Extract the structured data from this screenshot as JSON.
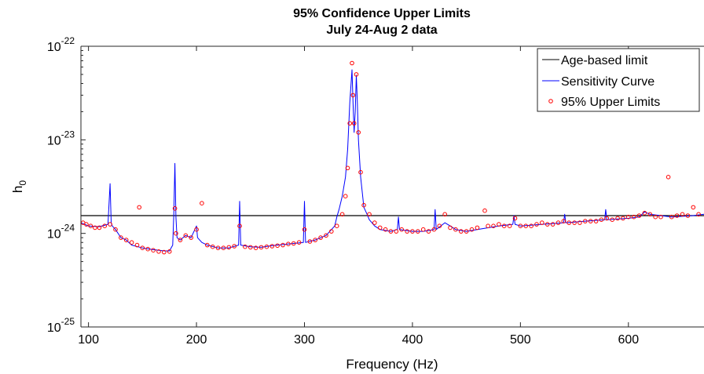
{
  "chart_data": {
    "type": "line",
    "title": "95% Confidence Upper Limits",
    "subtitle": "July 24-Aug 2 data",
    "xlabel": "Frequency (Hz)",
    "ylabel": "h",
    "ylabel_sub": "0",
    "xlim": [
      93,
      670
    ],
    "ylim": [
      1e-25,
      1e-22
    ],
    "y_scale": "log",
    "grid": false,
    "legend_position": "top-right",
    "x_ticks": [
      100,
      200,
      300,
      400,
      500,
      600
    ],
    "y_ticks": [
      {
        "value": 1e-25,
        "base": "10",
        "exp": "-25"
      },
      {
        "value": 1e-24,
        "base": "10",
        "exp": "-24"
      },
      {
        "value": 1e-23,
        "base": "10",
        "exp": "-23"
      },
      {
        "value": 1e-22,
        "base": "10",
        "exp": "-22"
      }
    ],
    "series": [
      {
        "name": "Age-based limit",
        "style": "line",
        "color": "#000000",
        "x": [
          93,
          670
        ],
        "y": [
          1.55e-24,
          1.55e-24
        ]
      },
      {
        "name": "Sensitivity Curve",
        "style": "line",
        "color": "#0000ff",
        "x": [
          93,
          100,
          110,
          118,
          120,
          121,
          122,
          125,
          130,
          135,
          140,
          150,
          160,
          170,
          175,
          178,
          179,
          180,
          181,
          182,
          185,
          190,
          195,
          200,
          201,
          205,
          210,
          220,
          230,
          239,
          240,
          241,
          250,
          260,
          270,
          280,
          290,
          299,
          300,
          301,
          310,
          320,
          328,
          330,
          332,
          335,
          338,
          340,
          342,
          344,
          345,
          346,
          347,
          348,
          349,
          350,
          352,
          355,
          358,
          360,
          365,
          370,
          380,
          386,
          387,
          388,
          400,
          410,
          420,
          421,
          422,
          430,
          435,
          440,
          450,
          460,
          480,
          493,
          494,
          495,
          500,
          520,
          540,
          541,
          542,
          560,
          578,
          579,
          580,
          600,
          610,
          615,
          620,
          640,
          660,
          670
        ],
        "y": [
          1.3e-24,
          1.2e-24,
          1.18e-24,
          1.25e-24,
          3.4e-24,
          1.3e-24,
          1.2e-24,
          1.1e-24,
          9e-25,
          8.5e-25,
          7.5e-25,
          7e-25,
          6.7e-25,
          6.5e-25,
          6.5e-25,
          7.5e-25,
          1.6e-24,
          5.6e-24,
          1.5e-24,
          9e-25,
          8.5e-25,
          9.5e-25,
          9e-25,
          1.2e-24,
          9e-25,
          8e-25,
          7.5e-25,
          7e-25,
          7e-25,
          7.5e-25,
          2.2e-24,
          7.5e-25,
          7.2e-25,
          7.1e-25,
          7.4e-25,
          7.6e-25,
          7.8e-25,
          8e-25,
          2.2e-24,
          8e-25,
          8.5e-25,
          9.5e-25,
          1.2e-24,
          1.5e-24,
          1.8e-24,
          2.5e-24,
          4e-24,
          8e-24,
          2.5e-23,
          5.6e-23,
          2.5e-23,
          1.2e-23,
          2e-23,
          4.9e-23,
          2.5e-23,
          1e-23,
          4e-24,
          1.9e-24,
          1.6e-24,
          1.4e-24,
          1.2e-24,
          1.1e-24,
          1.05e-24,
          1.1e-24,
          1.5e-24,
          1.1e-24,
          1.05e-24,
          1.05e-24,
          1.1e-24,
          1.8e-24,
          1.1e-24,
          1.3e-24,
          1.2e-24,
          1.1e-24,
          1.05e-24,
          1.1e-24,
          1.2e-24,
          1.25e-24,
          1.55e-24,
          1.25e-24,
          1.2e-24,
          1.25e-24,
          1.3e-24,
          1.6e-24,
          1.3e-24,
          1.35e-24,
          1.4e-24,
          1.8e-24,
          1.4e-24,
          1.45e-24,
          1.5e-24,
          1.7e-24,
          1.6e-24,
          1.5e-24,
          1.55e-24,
          1.6e-24
        ]
      },
      {
        "name": "95% Upper Limits",
        "style": "markers",
        "color": "#ff0000",
        "x": [
          95,
          98,
          102,
          106,
          110,
          115,
          120,
          125,
          130,
          135,
          140,
          145,
          147,
          150,
          155,
          160,
          165,
          170,
          175,
          180,
          181,
          185,
          190,
          195,
          200,
          205,
          210,
          215,
          220,
          225,
          230,
          235,
          240,
          245,
          250,
          255,
          260,
          265,
          270,
          275,
          280,
          285,
          290,
          295,
          300,
          305,
          310,
          315,
          320,
          325,
          330,
          335,
          338,
          340,
          342,
          344,
          345,
          346,
          348,
          350,
          352,
          355,
          360,
          365,
          370,
          375,
          380,
          385,
          390,
          395,
          400,
          405,
          410,
          415,
          420,
          425,
          430,
          435,
          440,
          445,
          450,
          455,
          460,
          467,
          470,
          475,
          480,
          485,
          490,
          495,
          500,
          505,
          510,
          515,
          520,
          525,
          530,
          535,
          540,
          545,
          550,
          555,
          560,
          565,
          570,
          575,
          580,
          585,
          590,
          595,
          600,
          605,
          610,
          615,
          620,
          625,
          630,
          637,
          640,
          645,
          650,
          655,
          660,
          665
        ],
        "y": [
          1.3e-24,
          1.25e-24,
          1.2e-24,
          1.15e-24,
          1.15e-24,
          1.2e-24,
          1.25e-24,
          1.1e-24,
          9e-25,
          8.5e-25,
          8e-25,
          7.5e-25,
          1.9e-24,
          7e-25,
          6.8e-25,
          6.6e-25,
          6.4e-25,
          6.3e-25,
          6.4e-25,
          1.85e-24,
          1e-24,
          8.5e-25,
          9.5e-25,
          9e-25,
          1.1e-24,
          2.1e-24,
          7.5e-25,
          7.2e-25,
          7e-25,
          7e-25,
          7.1e-25,
          7.3e-25,
          1.2e-24,
          7.2e-25,
          7.1e-25,
          7e-25,
          7.1e-25,
          7.2e-25,
          7.3e-25,
          7.4e-25,
          7.5e-25,
          7.7e-25,
          7.8e-25,
          8e-25,
          1.1e-24,
          8.2e-25,
          8.5e-25,
          9e-25,
          9.5e-25,
          1.05e-24,
          1.2e-24,
          1.6e-24,
          2.5e-24,
          5e-24,
          1.5e-23,
          6.6e-23,
          3e-23,
          1.5e-23,
          5e-23,
          1.2e-23,
          4.5e-24,
          2e-24,
          1.6e-24,
          1.3e-24,
          1.15e-24,
          1.1e-24,
          1.05e-24,
          1.05e-24,
          1.1e-24,
          1.05e-24,
          1.05e-24,
          1.05e-24,
          1.1e-24,
          1.05e-24,
          1.1e-24,
          1.2e-24,
          1.6e-24,
          1.15e-24,
          1.1e-24,
          1.05e-24,
          1.05e-24,
          1.1e-24,
          1.15e-24,
          1.75e-24,
          1.2e-24,
          1.2e-24,
          1.25e-24,
          1.2e-24,
          1.2e-24,
          1.45e-24,
          1.2e-24,
          1.2e-24,
          1.2e-24,
          1.25e-24,
          1.3e-24,
          1.25e-24,
          1.25e-24,
          1.3e-24,
          1.35e-24,
          1.3e-24,
          1.3e-24,
          1.3e-24,
          1.35e-24,
          1.35e-24,
          1.35e-24,
          1.4e-24,
          1.45e-24,
          1.4e-24,
          1.45e-24,
          1.45e-24,
          1.5e-24,
          1.5e-24,
          1.55e-24,
          1.65e-24,
          1.6e-24,
          1.5e-24,
          1.5e-24,
          4e-24,
          1.5e-24,
          1.55e-24,
          1.6e-24,
          1.55e-24,
          1.9e-24,
          1.6e-24
        ]
      }
    ]
  }
}
